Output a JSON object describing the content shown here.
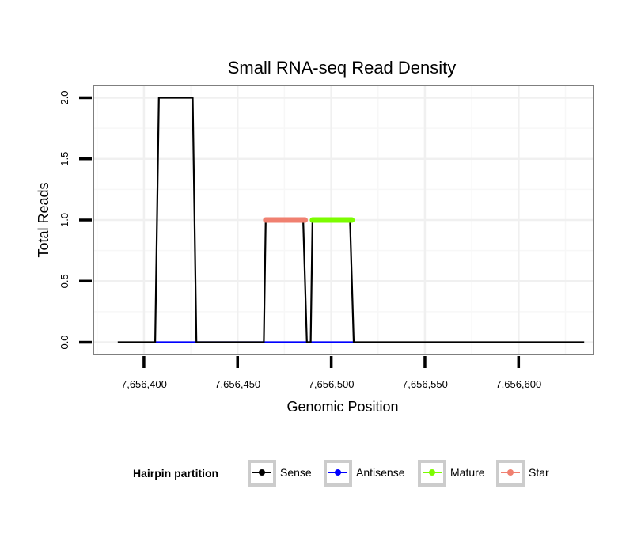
{
  "chart_data": {
    "type": "line",
    "title": "Small RNA-seq Read Density",
    "xlabel": "Genomic Position",
    "ylabel": "Total Reads",
    "xlim": [
      7656373,
      7656640
    ],
    "ylim": [
      -0.1,
      2.1
    ],
    "x_ticks": [
      7656400,
      7656450,
      7656500,
      7656550,
      7656600
    ],
    "x_tick_labels": [
      "7,656,400",
      "7,656,450",
      "7,656,500",
      "7,656,550",
      "7,656,600"
    ],
    "y_ticks": [
      0,
      0.5,
      1,
      1.5,
      2
    ],
    "y_tick_labels": [
      "0.0",
      "0.5",
      "1.0",
      "1.5",
      "2.0"
    ],
    "grid": true,
    "legend_title": "Hairpin partition",
    "legend_position": "bottom",
    "series": [
      {
        "name": "Sense",
        "color": "#000000",
        "x": [
          7656386,
          7656406,
          7656408,
          7656426,
          7656428,
          7656464,
          7656465,
          7656485,
          7656487,
          7656489,
          7656490,
          7656510,
          7656512,
          7656635
        ],
        "y": [
          0,
          0,
          2,
          2,
          0,
          0,
          1,
          1,
          0,
          0,
          1,
          1,
          0,
          0
        ]
      },
      {
        "name": "Antisense",
        "color": "#0000ff",
        "x": [
          7656406,
          7656427,
          7656465,
          7656512
        ],
        "y": [
          0,
          0,
          0,
          0
        ]
      },
      {
        "name": "Mature",
        "color": "#7cfc00",
        "x": [
          7656490,
          7656511
        ],
        "y": [
          1,
          1
        ]
      },
      {
        "name": "Star",
        "color": "#f08070",
        "x": [
          7656465,
          7656486
        ],
        "y": [
          1,
          1
        ]
      }
    ]
  }
}
